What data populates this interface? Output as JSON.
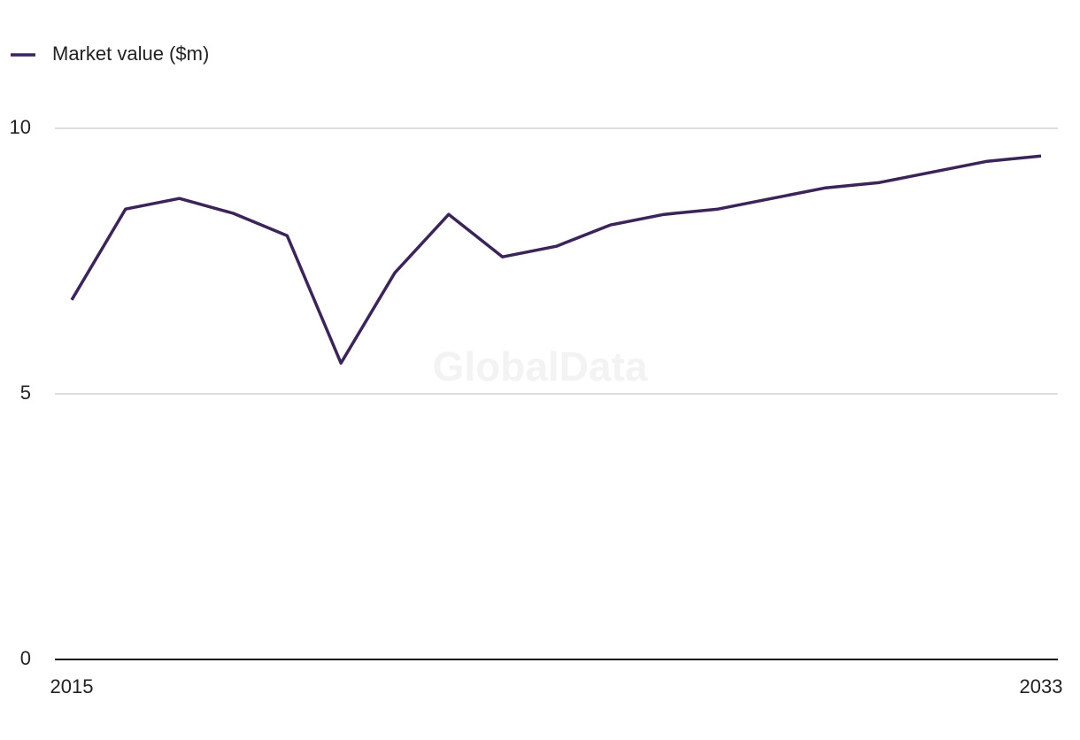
{
  "chart_data": {
    "type": "line",
    "x": [
      2015,
      2016,
      2017,
      2018,
      2019,
      2020,
      2021,
      2022,
      2023,
      2024,
      2025,
      2026,
      2027,
      2028,
      2029,
      2030,
      2031,
      2032,
      2033
    ],
    "series": [
      {
        "name": "Market value ($m)",
        "color": "#3b2458",
        "values": [
          6.77,
          8.48,
          8.68,
          8.4,
          7.98,
          5.58,
          7.28,
          8.38,
          7.58,
          7.78,
          8.18,
          8.38,
          8.48,
          8.68,
          8.88,
          8.98,
          9.18,
          9.38,
          9.48
        ]
      }
    ],
    "xlim": [
      2015,
      2033
    ],
    "xticks": [
      2015,
      2033
    ],
    "ylim": [
      0,
      10
    ],
    "yticks": [
      0,
      5,
      10
    ],
    "grid": true,
    "legend": "top-left",
    "watermark": "GlobalData"
  }
}
